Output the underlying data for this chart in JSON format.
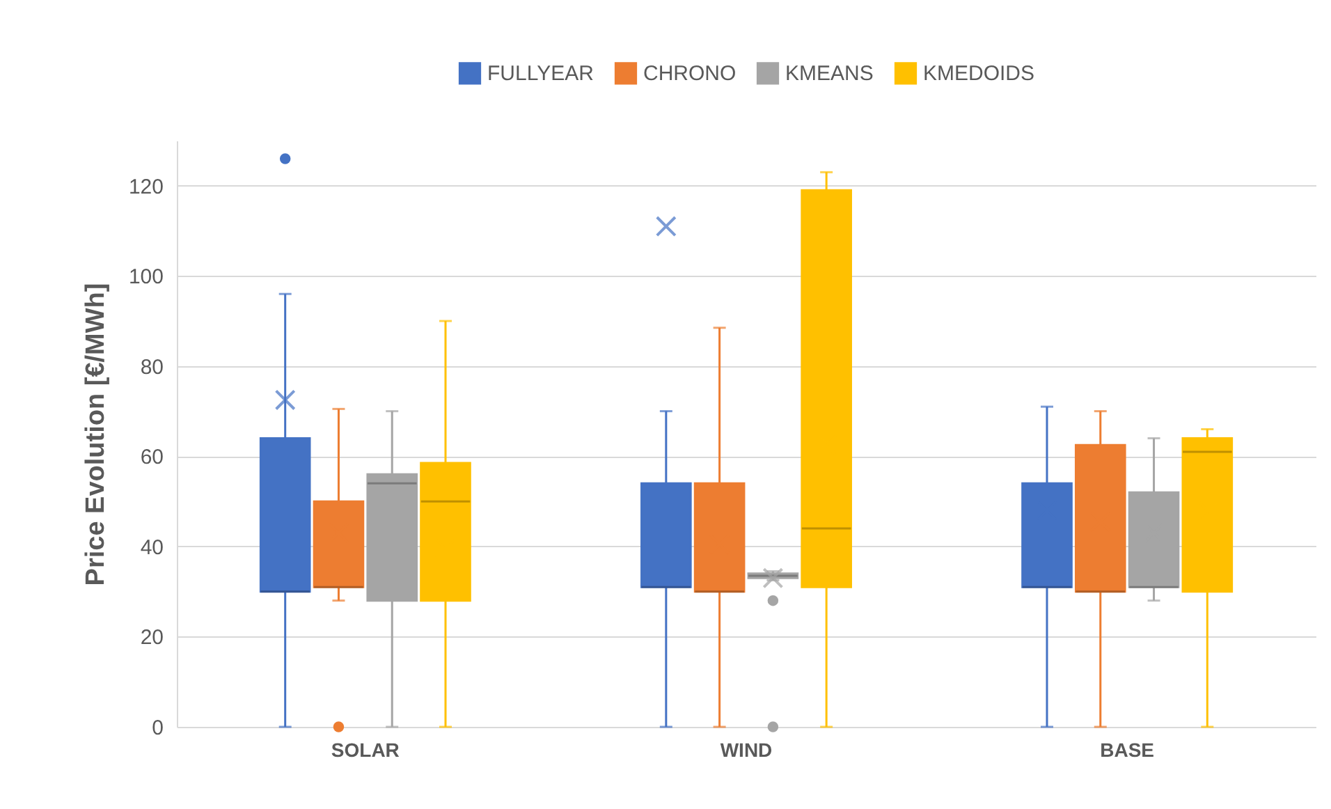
{
  "chart_data": {
    "type": "box",
    "ylabel": "Price Evolution [€/MWh]",
    "categories": [
      "SOLAR",
      "WIND",
      "BASE"
    ],
    "ylim": [
      0,
      130
    ],
    "yticks": [
      0,
      20,
      40,
      60,
      80,
      100,
      120
    ],
    "grid": "y",
    "legend": "top",
    "series": [
      {
        "name": "FULLYEAR",
        "color": "#4472c4",
        "boxes": [
          {
            "low": 0,
            "q1": 30,
            "median": 30,
            "q3": 64,
            "high": 96,
            "mean": 72.5,
            "outliers": [
              126
            ]
          },
          {
            "low": 0,
            "q1": 31,
            "median": 31,
            "q3": 54,
            "high": 70,
            "mean": 111
          },
          {
            "low": 0,
            "q1": 31,
            "median": 31,
            "q3": 54,
            "high": 71,
            "mean": 48
          }
        ]
      },
      {
        "name": "CHRONO",
        "color": "#ed7d31",
        "boxes": [
          {
            "low": 28,
            "q1": 31,
            "median": 31,
            "q3": 50,
            "high": 70.5,
            "mean": 43,
            "outliers": [
              0
            ]
          },
          {
            "low": 0,
            "q1": 30,
            "median": 30,
            "q3": 54,
            "high": 88.5,
            "mean": 40.5
          },
          {
            "low": 0,
            "q1": 30,
            "median": 30,
            "q3": 62.5,
            "high": 70,
            "mean": 45.5
          }
        ]
      },
      {
        "name": "KMEANS",
        "color": "#a5a5a5",
        "boxes": [
          {
            "low": 0,
            "q1": 28,
            "median": 54,
            "q3": 56,
            "high": 70
          },
          {
            "low": 32.5,
            "q1": 33,
            "median": 33.5,
            "q3": 34,
            "high": 34.5,
            "mean": 33,
            "outliers": [
              28,
              0
            ]
          },
          {
            "low": 28,
            "q1": 31,
            "median": 31,
            "q3": 52,
            "high": 64,
            "mean": 43
          }
        ]
      },
      {
        "name": "KMEDOIDS",
        "color": "#ffc000",
        "boxes": [
          {
            "low": 0,
            "q1": 28,
            "median": 50,
            "q3": 58.5,
            "high": 90,
            "mean": 39.5
          },
          {
            "low": 0,
            "q1": 31,
            "median": 44,
            "q3": 119,
            "high": 123,
            "mean": 62.5
          },
          {
            "low": 0,
            "q1": 30,
            "median": 61,
            "q3": 64,
            "high": 66,
            "mean": 48
          }
        ]
      }
    ]
  }
}
